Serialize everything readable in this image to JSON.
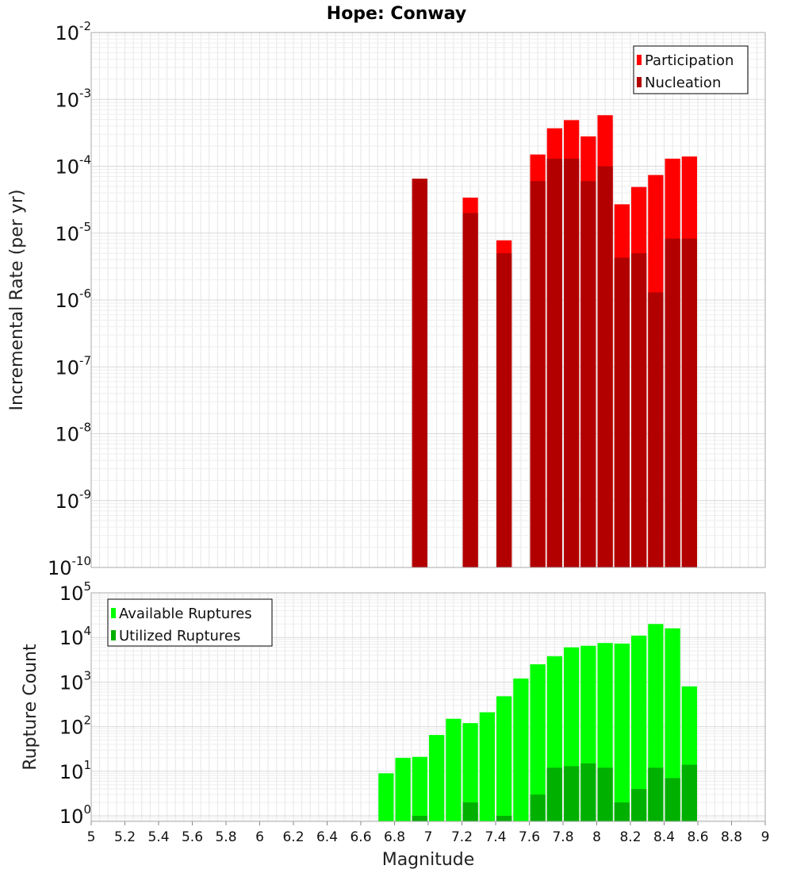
{
  "chart_data": [
    {
      "type": "bar",
      "title": "Hope: Conway",
      "ylabel": "Incremental Rate (per yr)",
      "yscale": "log",
      "ylim": [
        1e-10,
        0.01
      ],
      "y_tick_labels": [
        "10-10",
        "10-9",
        "10-8",
        "10-7",
        "10-6",
        "10-5",
        "10-4",
        "10-3",
        "10-2"
      ],
      "legend_position": "top-right",
      "grid": true,
      "series": [
        {
          "name": "Participation",
          "color": "#ff0000",
          "x": [
            6.9,
            7.2,
            7.4,
            7.6,
            7.7,
            7.8,
            7.9,
            8.0,
            8.1,
            8.2,
            8.3,
            8.4,
            8.5
          ],
          "values": [
            6.5e-05,
            3.4e-05,
            7.8e-06,
            0.00015,
            0.00037,
            0.00049,
            0.00028,
            0.00058,
            2.7e-05,
            4.9e-05,
            7.4e-05,
            0.00013,
            0.00014
          ]
        },
        {
          "name": "Nucleation",
          "color": "#b20000",
          "x": [
            6.9,
            7.2,
            7.4,
            7.6,
            7.7,
            7.8,
            7.9,
            8.0,
            8.1,
            8.2,
            8.3,
            8.4,
            8.5
          ],
          "values": [
            6.5e-05,
            2e-05,
            5e-06,
            6e-05,
            0.00013,
            0.00013,
            6e-05,
            0.0001,
            4.3e-06,
            5e-06,
            1.3e-06,
            8.3e-06,
            8.3e-06
          ]
        }
      ]
    },
    {
      "type": "bar",
      "xlabel": "Magnitude",
      "ylabel": "Rupture Count",
      "yscale": "log",
      "ylim": [
        0.75,
        100000.0
      ],
      "xlim": [
        5,
        9
      ],
      "x_ticks": [
        "5",
        "5.2",
        "5.4",
        "5.6",
        "5.8",
        "6",
        "6.2",
        "6.4",
        "6.6",
        "6.8",
        "7",
        "7.2",
        "7.4",
        "7.6",
        "7.8",
        "8",
        "8.2",
        "8.4",
        "8.6",
        "8.8",
        "9"
      ],
      "y_tick_labels": [
        "100",
        "101",
        "102",
        "103",
        "104",
        "105"
      ],
      "legend_position": "top-left",
      "grid": true,
      "series": [
        {
          "name": "Available Ruptures",
          "color": "#00ff00",
          "x": [
            6.7,
            6.8,
            6.9,
            7.0,
            7.1,
            7.2,
            7.3,
            7.4,
            7.5,
            7.6,
            7.7,
            7.8,
            7.9,
            8.0,
            8.1,
            8.2,
            8.3,
            8.4,
            8.5
          ],
          "values": [
            9,
            20,
            21,
            65,
            150,
            120,
            210,
            480,
            1200,
            2500,
            3800,
            6000,
            6500,
            7500,
            7300,
            11000,
            20000,
            16000,
            800
          ]
        },
        {
          "name": "Utilized Ruptures",
          "color": "#00b000",
          "x": [
            6.7,
            6.8,
            6.9,
            7.0,
            7.1,
            7.2,
            7.3,
            7.4,
            7.5,
            7.6,
            7.7,
            7.8,
            7.9,
            8.0,
            8.1,
            8.2,
            8.3,
            8.4,
            8.5
          ],
          "values": [
            0,
            0,
            1,
            0,
            0,
            2,
            0,
            1,
            0,
            3,
            12,
            13,
            15,
            12,
            2,
            4,
            12,
            7,
            14
          ]
        }
      ]
    }
  ]
}
